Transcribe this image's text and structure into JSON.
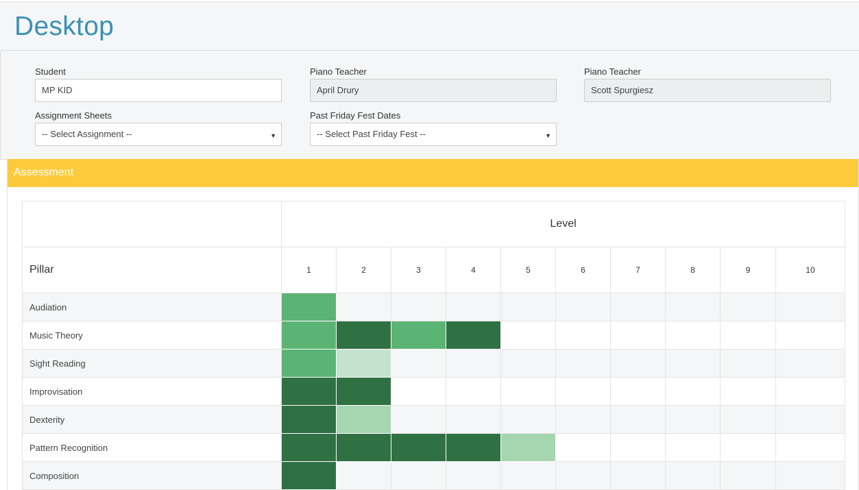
{
  "page": {
    "title": "Desktop"
  },
  "form": {
    "student_label": "Student",
    "student_value": "MP KID",
    "teacher1_label": "Piano Teacher",
    "teacher1_value": "April Drury",
    "teacher2_label": "Piano Teacher",
    "teacher2_value": "Scott Spurgiesz",
    "assignment_label": "Assignment Sheets",
    "assignment_value": "-- Select Assignment --",
    "fest_label": "Past Friday Fest Dates",
    "fest_value": "-- Select Past Friday Fest --",
    "caret": "▼"
  },
  "assessment": {
    "heading": "Assessment",
    "level_caption": "Level",
    "pillar_caption": "Pillar",
    "levels": [
      "1",
      "2",
      "3",
      "4",
      "5",
      "6",
      "7",
      "8",
      "9",
      "10"
    ],
    "pillars": [
      {
        "name": "Audiation",
        "cells": [
          "mid",
          "",
          "",
          "",
          "",
          "",
          "",
          "",
          "",
          ""
        ]
      },
      {
        "name": "Music Theory",
        "cells": [
          "mid",
          "dark",
          "mid",
          "dark",
          "",
          "",
          "",
          "",
          "",
          ""
        ]
      },
      {
        "name": "Sight Reading",
        "cells": [
          "mid",
          "pale",
          "",
          "",
          "",
          "",
          "",
          "",
          "",
          ""
        ]
      },
      {
        "name": "Improvisation",
        "cells": [
          "dark",
          "dark",
          "",
          "",
          "",
          "",
          "",
          "",
          "",
          ""
        ]
      },
      {
        "name": "Dexterity",
        "cells": [
          "dark",
          "light",
          "",
          "",
          "",
          "",
          "",
          "",
          "",
          ""
        ]
      },
      {
        "name": "Pattern Recognition",
        "cells": [
          "dark",
          "dark",
          "dark",
          "dark",
          "light",
          "",
          "",
          "",
          "",
          ""
        ]
      },
      {
        "name": "Composition",
        "cells": [
          "dark",
          "",
          "",
          "",
          "",
          "",
          "",
          "",
          "",
          ""
        ]
      }
    ],
    "legend_colors": {
      "light": "#a5d6b0",
      "pale": "#c4e2cd",
      "mid": "#5cb474",
      "dark": "#307144"
    }
  }
}
